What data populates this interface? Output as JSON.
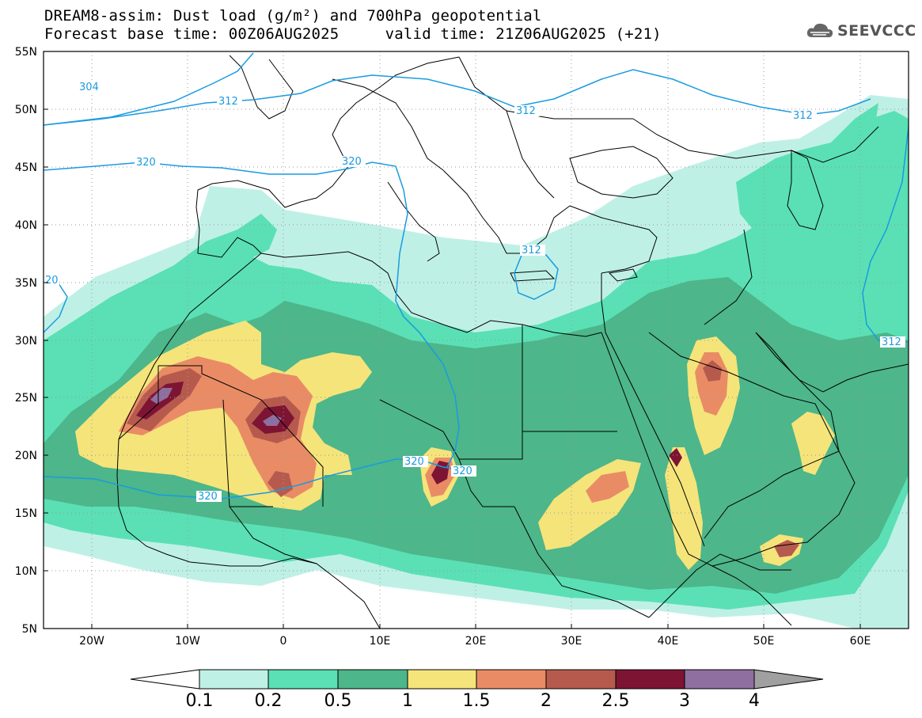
{
  "header": {
    "title_line1": "DREAM8-assim: Dust load (g/m²) and 700hPa geopotential",
    "title_line2": "Forecast base time: 00Z06AUG2025     valid time: 21Z06AUG2025 (+21)"
  },
  "logo": {
    "text": "SEEVCCC",
    "icon": "cloud-icon"
  },
  "map": {
    "lon_ticks": [
      "20W",
      "10W",
      "0",
      "10E",
      "20E",
      "30E",
      "40E",
      "50E",
      "60E"
    ],
    "lat_ticks": [
      "55N",
      "50N",
      "45N",
      "40N",
      "35N",
      "30N",
      "25N",
      "20N",
      "15N",
      "10N",
      "5N"
    ],
    "lon_range": [
      -25,
      65
    ],
    "lat_range": [
      5,
      55
    ],
    "grid": "dotted",
    "contour_labels": [
      "304",
      "312",
      "312",
      "312",
      "320",
      "320",
      "312",
      "20",
      "312",
      "320",
      "320",
      "320"
    ]
  },
  "colorbar": {
    "labels": [
      "0.1",
      "0.2",
      "0.5",
      "1",
      "1.5",
      "2",
      "2.5",
      "3",
      "4"
    ],
    "colors": [
      "#ffffff",
      "#bff0e6",
      "#5ae0b4",
      "#4db68a",
      "#f5e47a",
      "#e98c66",
      "#b75a4e",
      "#7d1434",
      "#8e6fa0",
      "#a0a0a0"
    ]
  },
  "colors": {
    "c1": "#bff0e6",
    "c2": "#5ae0b4",
    "c3": "#4db68a",
    "c4": "#f5e47a",
    "c5": "#e98c66",
    "c6": "#b75a4e",
    "c7": "#7d1434",
    "c8": "#8e6fa0",
    "contour": "#1a9be0"
  }
}
